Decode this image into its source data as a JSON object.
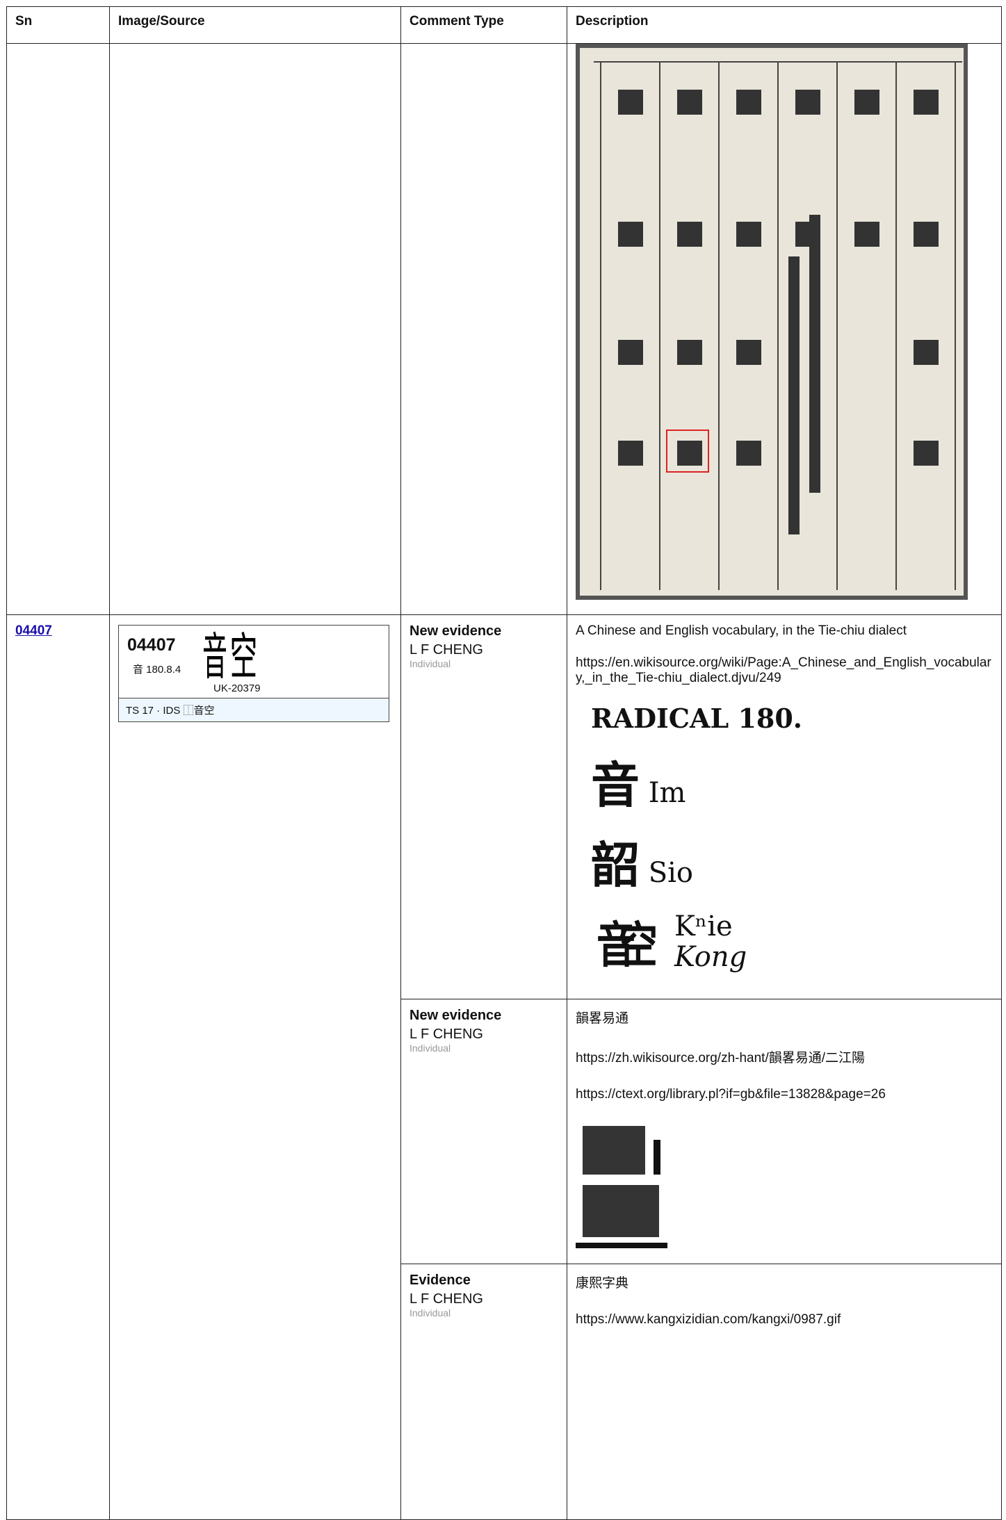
{
  "table": {
    "header": [
      "Sn",
      "Image/Source",
      "Comment Type",
      "Description"
    ],
    "entry": {
      "sn": "04407",
      "card": {
        "sn": "04407",
        "radical": "音 180.8.4",
        "glyph": [
          "音",
          "空"
        ],
        "source": "UK-20379",
        "footer": "TS 17 · IDS ⿰音空"
      },
      "evidence": [
        {
          "type": "New evidence",
          "user": "L F CHENG",
          "role": "Individual",
          "lines": [
            "A Chinese and English vocabulary, in the Tie-chiu dialect",
            "https://en.wikisource.org/wiki/Page:A_Chinese_and_English_vocabulary,_in_the_Tie-chiu_dialect.djvu/249"
          ],
          "scan": {
            "heading": "RADICAL 180.",
            "rows": [
              [
                "音",
                "Im"
              ],
              [
                "韶",
                "Sio"
              ]
            ],
            "last": {
              "glyph": [
                "音",
                "空"
              ],
              "reading": "Kⁿie",
              "alt": "Kong"
            }
          }
        },
        {
          "type": "New evidence",
          "user": "L F CHENG",
          "role": "Individual",
          "lines": [
            "韻畧易通",
            "https://zh.wikisource.org/zh-hant/韻畧易通/二江陽",
            "https://ctext.org/library.pl?if=gb&file=13828&page=26"
          ]
        },
        {
          "type": "Evidence",
          "user": "L F CHENG",
          "role": "Individual",
          "lines": [
            "康熙字典",
            "https://www.kangxizidian.com/kangxi/0987.gif"
          ]
        }
      ]
    }
  }
}
